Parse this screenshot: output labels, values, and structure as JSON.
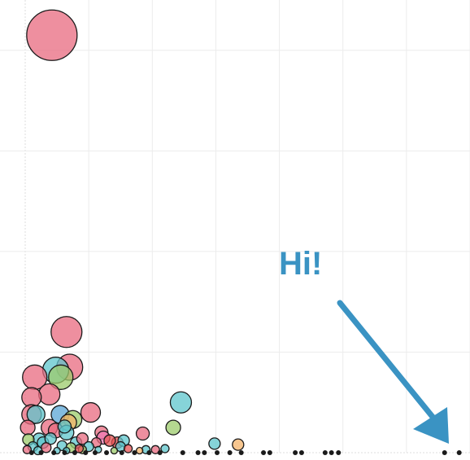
{
  "chart_data": {
    "type": "scatter",
    "title": "",
    "xlabel": "",
    "ylabel": "",
    "grid": true,
    "legend": "none",
    "xlim": [
      0,
      7
    ],
    "ylim": [
      0,
      4.5
    ],
    "annotation": {
      "text": "Hi!",
      "color": "#3a93c3"
    },
    "colors": {
      "pink": "#e8697f",
      "teal": "#5ec6cc",
      "green": "#9ccb6b",
      "blue": "#5aa6d6",
      "orange": "#f4b36a",
      "magenta": "#ef79b3",
      "red": "#e65153",
      "lime": "#b6d37a",
      "dark": "#1a1a1a"
    },
    "points": [
      {
        "x": 0.42,
        "y": 4.15,
        "size": 31,
        "color": "pink"
      },
      {
        "x": 0.65,
        "y": 1.2,
        "size": 19,
        "color": "pink"
      },
      {
        "x": 0.7,
        "y": 0.85,
        "size": 16,
        "color": "pink"
      },
      {
        "x": 0.48,
        "y": 0.82,
        "size": 16,
        "color": "teal"
      },
      {
        "x": 0.56,
        "y": 0.75,
        "size": 15,
        "color": "green"
      },
      {
        "x": 0.15,
        "y": 0.75,
        "size": 15,
        "color": "pink"
      },
      {
        "x": 0.38,
        "y": 0.58,
        "size": 13,
        "color": "pink"
      },
      {
        "x": 0.1,
        "y": 0.55,
        "size": 12,
        "color": "pink"
      },
      {
        "x": 2.45,
        "y": 0.5,
        "size": 13,
        "color": "teal"
      },
      {
        "x": 1.03,
        "y": 0.4,
        "size": 12,
        "color": "pink"
      },
      {
        "x": 0.1,
        "y": 0.38,
        "size": 12,
        "color": "pink"
      },
      {
        "x": 0.17,
        "y": 0.38,
        "size": 11,
        "color": "teal"
      },
      {
        "x": 0.55,
        "y": 0.38,
        "size": 11,
        "color": "blue"
      },
      {
        "x": 0.75,
        "y": 0.33,
        "size": 11,
        "color": "green"
      },
      {
        "x": 0.68,
        "y": 0.3,
        "size": 10,
        "color": "orange"
      },
      {
        "x": 0.38,
        "y": 0.25,
        "size": 10,
        "color": "pink"
      },
      {
        "x": 2.33,
        "y": 0.25,
        "size": 9,
        "color": "green"
      },
      {
        "x": 0.04,
        "y": 0.25,
        "size": 9,
        "color": "pink"
      },
      {
        "x": 0.48,
        "y": 0.22,
        "size": 9,
        "color": "pink"
      },
      {
        "x": 0.65,
        "y": 0.2,
        "size": 9,
        "color": "teal"
      },
      {
        "x": 1.2,
        "y": 0.2,
        "size": 8,
        "color": "pink"
      },
      {
        "x": 0.62,
        "y": 0.26,
        "size": 8,
        "color": "teal"
      },
      {
        "x": 1.85,
        "y": 0.19,
        "size": 8,
        "color": "pink"
      },
      {
        "x": 1.23,
        "y": 0.15,
        "size": 8,
        "color": "magenta"
      },
      {
        "x": 0.22,
        "y": 0.13,
        "size": 8,
        "color": "teal"
      },
      {
        "x": 1.45,
        "y": 0.1,
        "size": 7,
        "color": "red"
      },
      {
        "x": 1.55,
        "y": 0.12,
        "size": 7,
        "color": "teal"
      },
      {
        "x": 0.8,
        "y": 0.1,
        "size": 7,
        "color": "teal"
      },
      {
        "x": 0.05,
        "y": 0.13,
        "size": 7,
        "color": "green"
      },
      {
        "x": 0.28,
        "y": 0.1,
        "size": 7,
        "color": "teal"
      },
      {
        "x": 0.9,
        "y": 0.14,
        "size": 7,
        "color": "pink"
      },
      {
        "x": 1.33,
        "y": 0.12,
        "size": 7,
        "color": "red"
      },
      {
        "x": 0.4,
        "y": 0.14,
        "size": 7,
        "color": "teal"
      },
      {
        "x": 2.98,
        "y": 0.09,
        "size": 7,
        "color": "teal"
      },
      {
        "x": 3.35,
        "y": 0.08,
        "size": 7,
        "color": "orange"
      },
      {
        "x": 1.12,
        "y": 0.1,
        "size": 6,
        "color": "pink"
      },
      {
        "x": 0.12,
        "y": 0.06,
        "size": 6,
        "color": "teal"
      },
      {
        "x": 0.58,
        "y": 0.07,
        "size": 6,
        "color": "teal"
      },
      {
        "x": 0.33,
        "y": 0.05,
        "size": 6,
        "color": "pink"
      },
      {
        "x": 1.5,
        "y": 0.06,
        "size": 6,
        "color": "teal"
      },
      {
        "x": 1.0,
        "y": 0.06,
        "size": 6,
        "color": "teal"
      },
      {
        "x": 0.72,
        "y": 0.05,
        "size": 6,
        "color": "green"
      },
      {
        "x": 1.62,
        "y": 0.04,
        "size": 5,
        "color": "red"
      },
      {
        "x": 2.2,
        "y": 0.04,
        "size": 5,
        "color": "teal"
      },
      {
        "x": 2.05,
        "y": 0.03,
        "size": 5,
        "color": "pink"
      },
      {
        "x": 1.9,
        "y": 0.03,
        "size": 5,
        "color": "teal"
      },
      {
        "x": 0.9,
        "y": 0.03,
        "size": 5,
        "color": "lime"
      },
      {
        "x": 0.2,
        "y": 0.02,
        "size": 5,
        "color": "teal"
      },
      {
        "x": 1.8,
        "y": 0.02,
        "size": 4,
        "color": "orange"
      },
      {
        "x": 0.85,
        "y": 0.04,
        "size": 5,
        "color": "red"
      },
      {
        "x": 1.15,
        "y": 0.03,
        "size": 4,
        "color": "teal"
      },
      {
        "x": 0.03,
        "y": 0.03,
        "size": 5,
        "color": "pink"
      },
      {
        "x": 0.5,
        "y": 0.02,
        "size": 4,
        "color": "teal"
      },
      {
        "x": 1.4,
        "y": 0.02,
        "size": 4,
        "color": "green"
      },
      {
        "x": 0.65,
        "y": 0.02,
        "size": 4,
        "color": "teal"
      },
      {
        "x": 0.1,
        "y": 0.0,
        "size": 3,
        "color": "dark"
      },
      {
        "x": 0.25,
        "y": 0.0,
        "size": 3,
        "color": "dark"
      },
      {
        "x": 0.45,
        "y": 0.0,
        "size": 3,
        "color": "dark"
      },
      {
        "x": 0.62,
        "y": 0.0,
        "size": 3,
        "color": "dark"
      },
      {
        "x": 0.78,
        "y": 0.0,
        "size": 3,
        "color": "dark"
      },
      {
        "x": 0.95,
        "y": 0.0,
        "size": 3,
        "color": "dark"
      },
      {
        "x": 1.1,
        "y": 0.0,
        "size": 3,
        "color": "dark"
      },
      {
        "x": 1.28,
        "y": 0.0,
        "size": 3,
        "color": "dark"
      },
      {
        "x": 1.52,
        "y": 0.0,
        "size": 3,
        "color": "dark"
      },
      {
        "x": 1.72,
        "y": 0.0,
        "size": 3,
        "color": "dark"
      },
      {
        "x": 1.95,
        "y": 0.0,
        "size": 3,
        "color": "dark"
      },
      {
        "x": 2.12,
        "y": 0.0,
        "size": 3,
        "color": "dark"
      },
      {
        "x": 2.48,
        "y": 0.0,
        "size": 3,
        "color": "dark"
      },
      {
        "x": 2.72,
        "y": 0.0,
        "size": 3,
        "color": "dark"
      },
      {
        "x": 2.82,
        "y": 0.0,
        "size": 3,
        "color": "dark"
      },
      {
        "x": 3.02,
        "y": 0.0,
        "size": 3,
        "color": "dark"
      },
      {
        "x": 3.22,
        "y": 0.0,
        "size": 3,
        "color": "dark"
      },
      {
        "x": 3.4,
        "y": 0.0,
        "size": 3,
        "color": "dark"
      },
      {
        "x": 3.75,
        "y": 0.0,
        "size": 3,
        "color": "dark"
      },
      {
        "x": 3.85,
        "y": 0.0,
        "size": 3,
        "color": "dark"
      },
      {
        "x": 4.25,
        "y": 0.0,
        "size": 3,
        "color": "dark"
      },
      {
        "x": 4.35,
        "y": 0.0,
        "size": 3,
        "color": "dark"
      },
      {
        "x": 4.72,
        "y": 0.0,
        "size": 3,
        "color": "dark"
      },
      {
        "x": 4.82,
        "y": 0.0,
        "size": 3,
        "color": "dark"
      },
      {
        "x": 4.93,
        "y": 0.0,
        "size": 3,
        "color": "dark"
      },
      {
        "x": 6.6,
        "y": 0.0,
        "size": 3,
        "color": "dark"
      },
      {
        "x": 6.83,
        "y": 0.0,
        "size": 3,
        "color": "dark"
      }
    ]
  }
}
